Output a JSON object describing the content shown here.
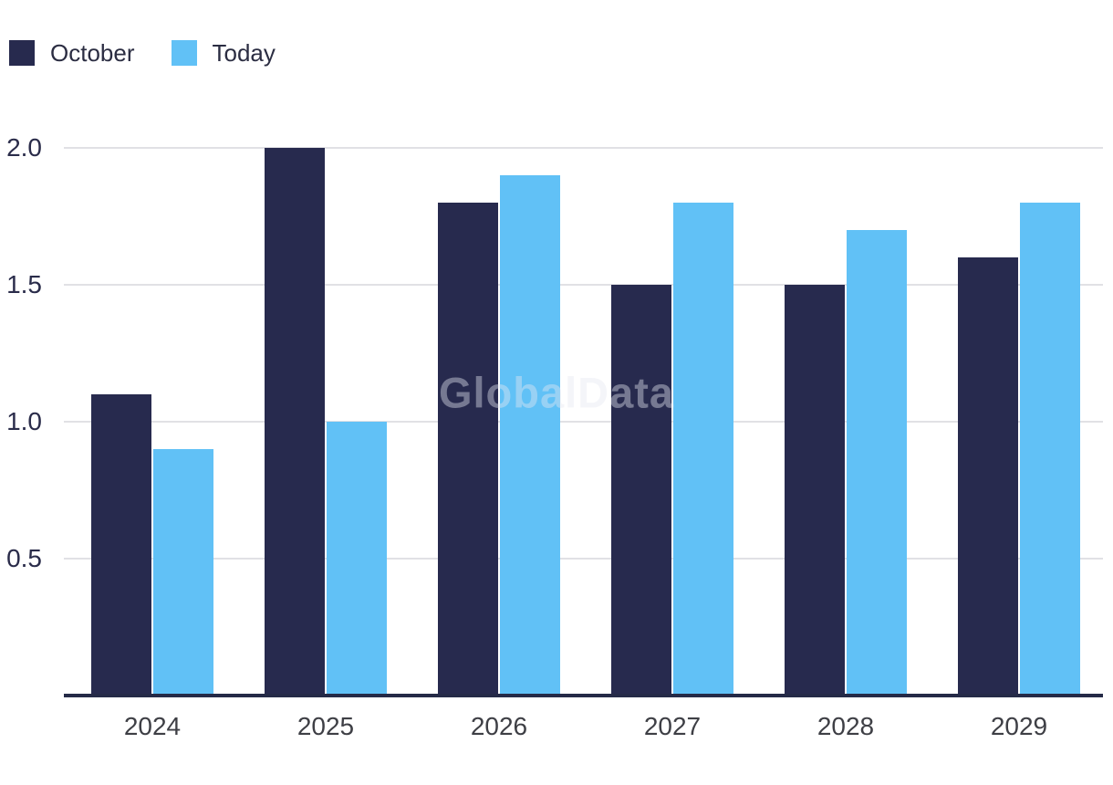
{
  "watermark": "GlobalData",
  "legend": {
    "items": [
      {
        "label": "October",
        "color": "#272a4e"
      },
      {
        "label": "Today",
        "color": "#61c1f6"
      }
    ]
  },
  "chart_data": {
    "type": "bar",
    "title": "",
    "xlabel": "",
    "ylabel": "",
    "categories": [
      "2024",
      "2025",
      "2026",
      "2027",
      "2028",
      "2029"
    ],
    "series": [
      {
        "name": "October",
        "color": "#272a4e",
        "values": [
          1.1,
          2.0,
          1.8,
          1.5,
          1.5,
          1.6
        ]
      },
      {
        "name": "Today",
        "color": "#61c1f6",
        "values": [
          0.9,
          1.0,
          1.9,
          1.8,
          1.7,
          1.8
        ]
      }
    ],
    "yticks": [
      0.5,
      1.0,
      1.5,
      2.0
    ],
    "ytick_labels": [
      "0.5",
      "1.0",
      "1.5",
      "2.0"
    ],
    "ylim": [
      0,
      2.0
    ],
    "grid": true,
    "legend_position": "top-left",
    "gridline_color": "#e1e1e5",
    "axis_line_color": "#252a47"
  }
}
